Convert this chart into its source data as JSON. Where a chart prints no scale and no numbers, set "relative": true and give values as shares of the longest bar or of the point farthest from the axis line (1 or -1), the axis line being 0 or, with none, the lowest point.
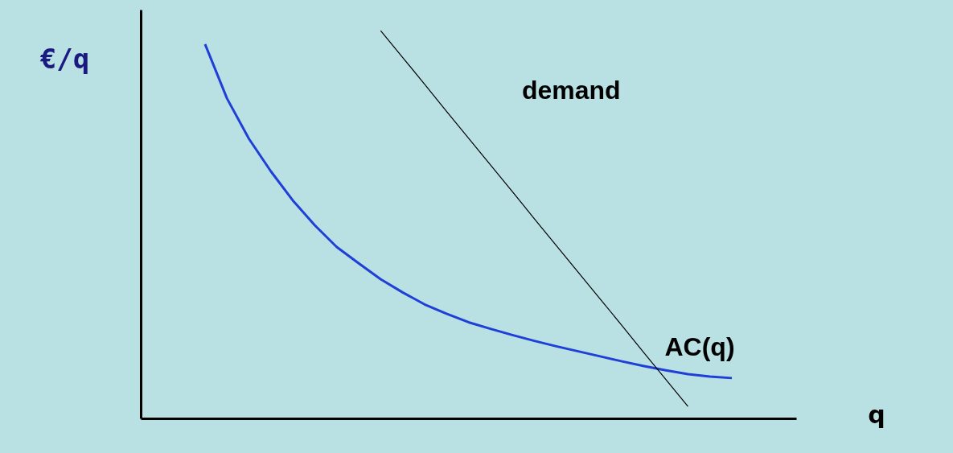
{
  "chart_data": {
    "type": "line",
    "relative": true,
    "annotations": [
      "q"
    ],
    "ylabel": "€/q",
    "grid": false,
    "marker": "none",
    "line_style": "solid",
    "categories": [
      null,
      null,
      null,
      null,
      null,
      null,
      null,
      null,
      null,
      null,
      null,
      null,
      null,
      null,
      null,
      null,
      null,
      null,
      null,
      null,
      null,
      null,
      null,
      null,
      null
    ],
    "series": [
      {
        "name": "AC(q)",
        "color": "#1f3fd6",
        "values": [
          0.965,
          0.825,
          0.721,
          0.637,
          0.562,
          0.498,
          0.442,
          0.4,
          0.359,
          0.325,
          0.294,
          0.27,
          0.248,
          0.231,
          0.215,
          0.2,
          0.186,
          0.173,
          0.16,
          0.147,
          0.135,
          0.124,
          0.114,
          0.108,
          0.104
        ]
      },
      {
        "name": "demand",
        "color": "#000000",
        "values": [
          null,
          null,
          null,
          null,
          null,
          null,
          null,
          null,
          1.0,
          0.931,
          0.862,
          0.792,
          0.723,
          0.654,
          0.585,
          0.515,
          0.446,
          0.377,
          0.308,
          0.239,
          0.169,
          0.1,
          0.031,
          null,
          null
        ]
      }
    ]
  }
}
